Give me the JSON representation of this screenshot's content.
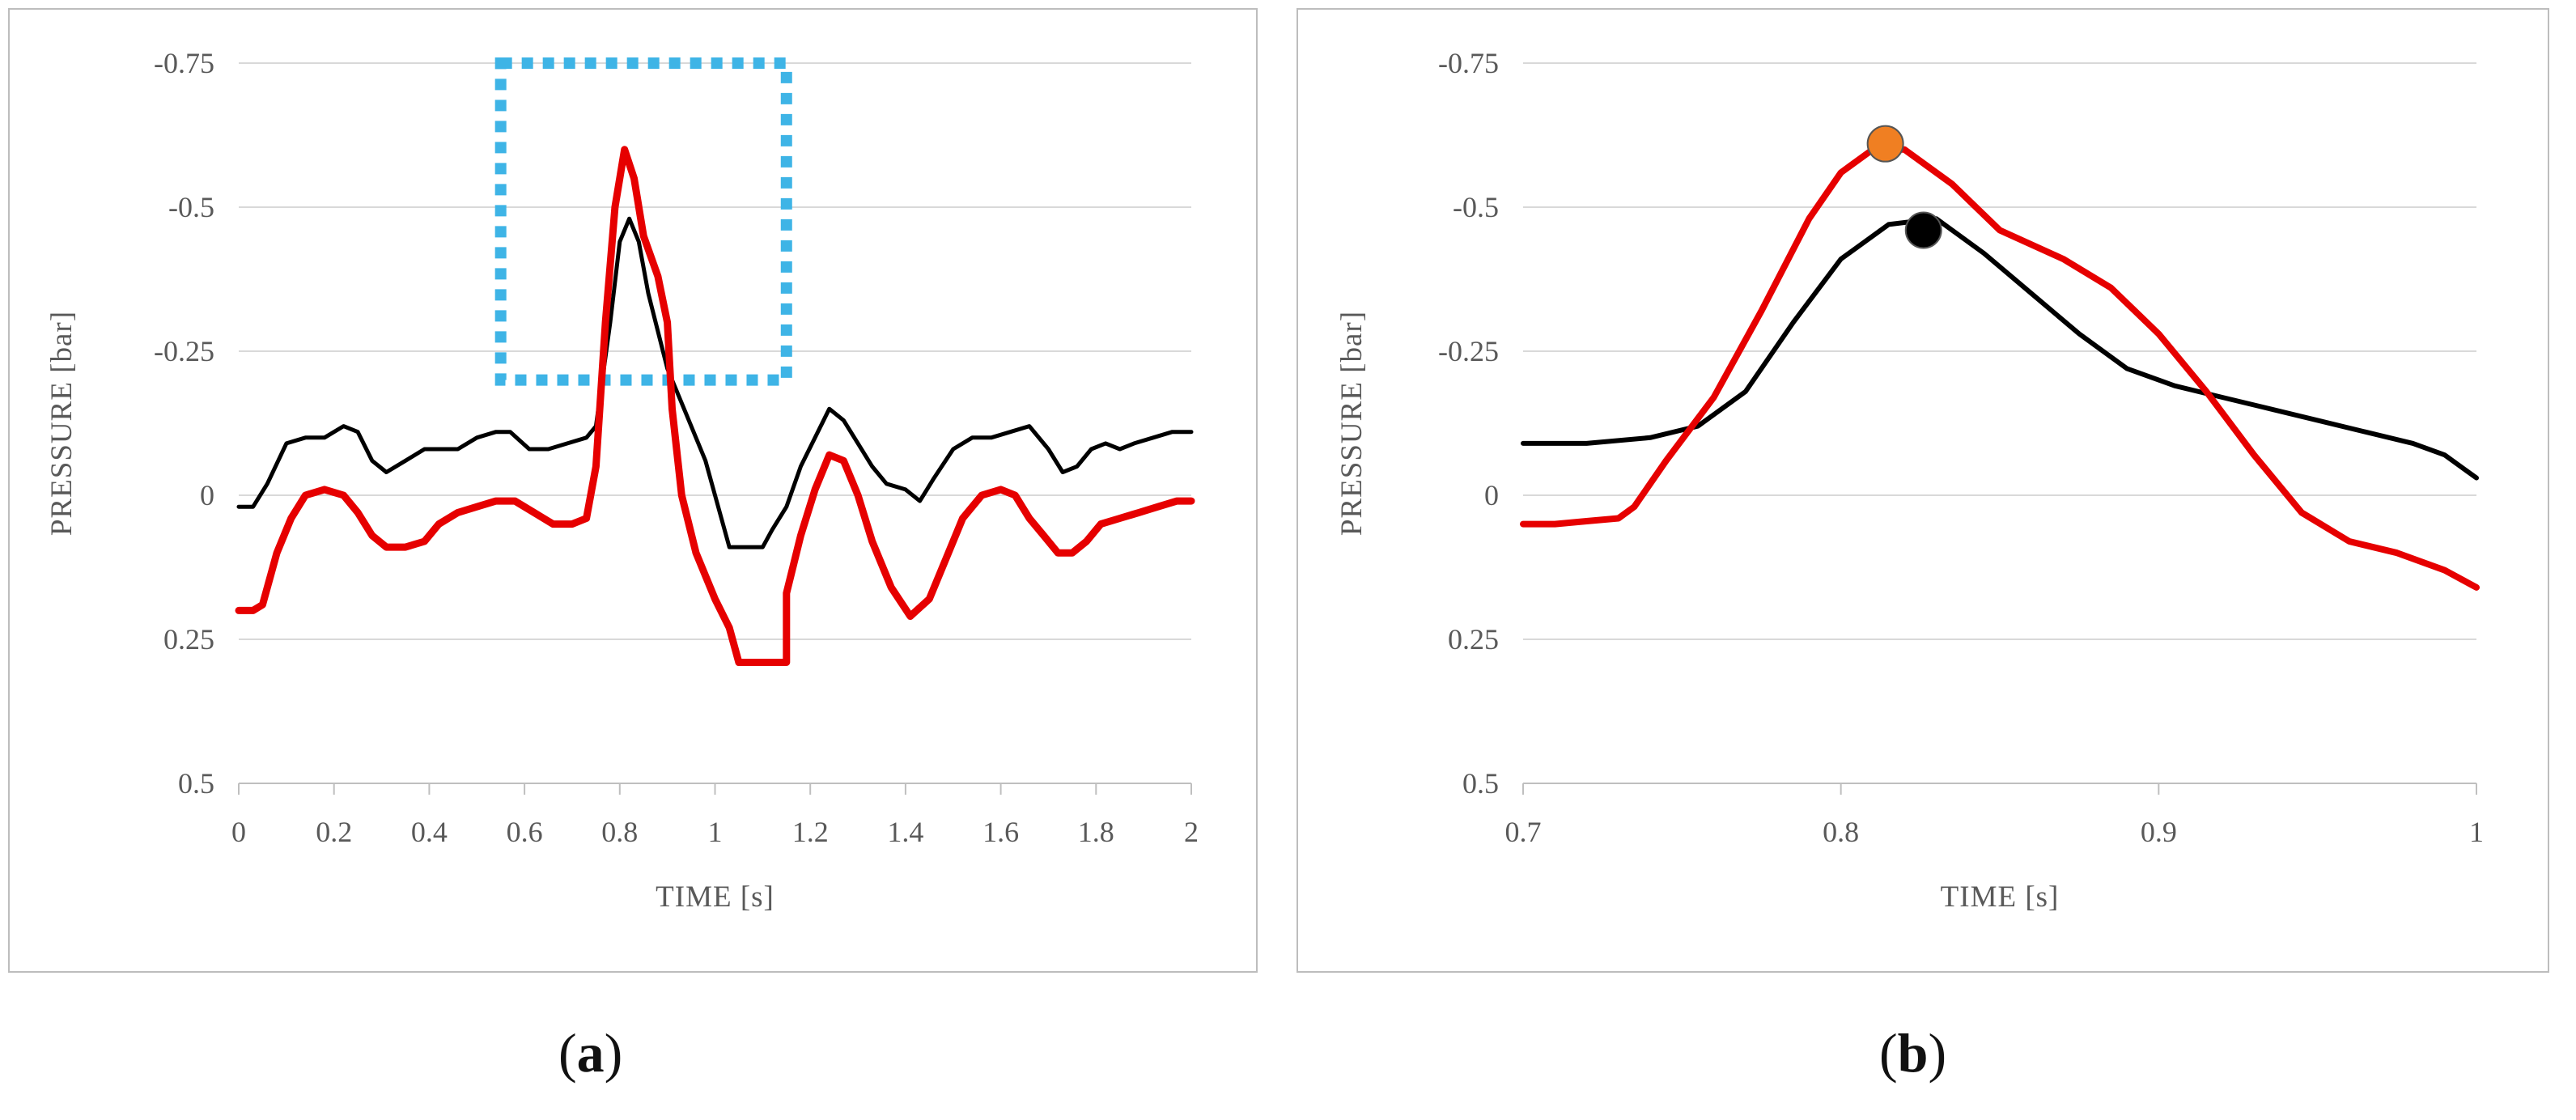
{
  "colors": {
    "measured": "#e60000",
    "simulated": "#000000",
    "highlight_box": "#3eb4e6",
    "peak_measured_marker": "#f07f22",
    "peak_simulated_marker": "#000000",
    "grid": "#d9d9d9",
    "tick_text": "#595959"
  },
  "captions": {
    "a": {
      "open": "(",
      "letter": "a",
      "close": ")"
    },
    "b": {
      "open": "(",
      "letter": "b",
      "close": ")"
    }
  },
  "chart_data": [
    {
      "panel": "a",
      "type": "line",
      "xlabel": "TIME [s]",
      "ylabel": "PRESSURE [bar]",
      "xlim": [
        0,
        2
      ],
      "ylim": [
        -0.75,
        0.5
      ],
      "y_inverted": true,
      "grid": "horizontal",
      "x_ticks": [
        0,
        0.2,
        0.4,
        0.6,
        0.8,
        1,
        1.2,
        1.4,
        1.6,
        1.8,
        2
      ],
      "x_tick_labels": [
        "0",
        "0.2",
        "0.4",
        "0.6",
        "0.8",
        "1",
        "1.2",
        "1.4",
        "1.6",
        "1.8",
        "2"
      ],
      "y_ticks": [
        -0.75,
        -0.5,
        -0.25,
        0,
        0.25,
        0.5
      ],
      "y_tick_labels": [
        "-0.75",
        "-0.5",
        "-0.25",
        "0",
        "0.25",
        "0.5"
      ],
      "highlight_box": {
        "x_range": [
          0.55,
          1.15
        ],
        "y_range": [
          -0.75,
          -0.2
        ],
        "style": "dotted"
      },
      "series": [
        {
          "name": "black trace",
          "color_key": "simulated",
          "stroke": 5,
          "points": [
            [
              0,
              0.02
            ],
            [
              0.03,
              0.02
            ],
            [
              0.06,
              -0.02
            ],
            [
              0.1,
              -0.09
            ],
            [
              0.14,
              -0.1
            ],
            [
              0.18,
              -0.1
            ],
            [
              0.22,
              -0.12
            ],
            [
              0.25,
              -0.11
            ],
            [
              0.28,
              -0.06
            ],
            [
              0.31,
              -0.04
            ],
            [
              0.35,
              -0.06
            ],
            [
              0.39,
              -0.08
            ],
            [
              0.42,
              -0.08
            ],
            [
              0.46,
              -0.08
            ],
            [
              0.5,
              -0.1
            ],
            [
              0.54,
              -0.11
            ],
            [
              0.57,
              -0.11
            ],
            [
              0.61,
              -0.08
            ],
            [
              0.65,
              -0.08
            ],
            [
              0.69,
              -0.09
            ],
            [
              0.73,
              -0.1
            ],
            [
              0.75,
              -0.12
            ],
            [
              0.78,
              -0.3
            ],
            [
              0.8,
              -0.44
            ],
            [
              0.82,
              -0.48
            ],
            [
              0.84,
              -0.44
            ],
            [
              0.86,
              -0.35
            ],
            [
              0.9,
              -0.22
            ],
            [
              0.94,
              -0.14
            ],
            [
              0.98,
              -0.06
            ],
            [
              1.0,
              0
            ],
            [
              1.03,
              0.09
            ],
            [
              1.08,
              0.09
            ],
            [
              1.1,
              0.09
            ],
            [
              1.12,
              0.06
            ],
            [
              1.15,
              0.02
            ],
            [
              1.18,
              -0.05
            ],
            [
              1.21,
              -0.1
            ],
            [
              1.24,
              -0.15
            ],
            [
              1.27,
              -0.13
            ],
            [
              1.3,
              -0.09
            ],
            [
              1.33,
              -0.05
            ],
            [
              1.36,
              -0.02
            ],
            [
              1.4,
              -0.01
            ],
            [
              1.43,
              0.01
            ],
            [
              1.46,
              -0.03
            ],
            [
              1.5,
              -0.08
            ],
            [
              1.54,
              -0.1
            ],
            [
              1.58,
              -0.1
            ],
            [
              1.62,
              -0.11
            ],
            [
              1.66,
              -0.12
            ],
            [
              1.7,
              -0.08
            ],
            [
              1.73,
              -0.04
            ],
            [
              1.76,
              -0.05
            ],
            [
              1.79,
              -0.08
            ],
            [
              1.82,
              -0.09
            ],
            [
              1.85,
              -0.08
            ],
            [
              1.88,
              -0.09
            ],
            [
              1.92,
              -0.1
            ],
            [
              1.96,
              -0.11
            ],
            [
              2.0,
              -0.11
            ]
          ]
        },
        {
          "name": "red trace",
          "color_key": "measured",
          "stroke": 9,
          "points": [
            [
              0,
              0.2
            ],
            [
              0.03,
              0.2
            ],
            [
              0.05,
              0.19
            ],
            [
              0.08,
              0.1
            ],
            [
              0.11,
              0.04
            ],
            [
              0.14,
              0
            ],
            [
              0.18,
              -0.01
            ],
            [
              0.22,
              0
            ],
            [
              0.25,
              0.03
            ],
            [
              0.28,
              0.07
            ],
            [
              0.31,
              0.09
            ],
            [
              0.35,
              0.09
            ],
            [
              0.39,
              0.08
            ],
            [
              0.42,
              0.05
            ],
            [
              0.46,
              0.03
            ],
            [
              0.5,
              0.02
            ],
            [
              0.54,
              0.01
            ],
            [
              0.58,
              0.01
            ],
            [
              0.62,
              0.03
            ],
            [
              0.66,
              0.05
            ],
            [
              0.7,
              0.05
            ],
            [
              0.73,
              0.04
            ],
            [
              0.75,
              -0.05
            ],
            [
              0.77,
              -0.3
            ],
            [
              0.79,
              -0.5
            ],
            [
              0.81,
              -0.6
            ],
            [
              0.83,
              -0.55
            ],
            [
              0.85,
              -0.45
            ],
            [
              0.88,
              -0.38
            ],
            [
              0.9,
              -0.3
            ],
            [
              0.91,
              -0.15
            ],
            [
              0.93,
              0
            ],
            [
              0.96,
              0.1
            ],
            [
              1.0,
              0.18
            ],
            [
              1.03,
              0.23
            ],
            [
              1.05,
              0.29
            ],
            [
              1.1,
              0.29
            ],
            [
              1.15,
              0.29
            ],
            [
              1.15,
              0.17
            ],
            [
              1.18,
              0.07
            ],
            [
              1.21,
              -0.01
            ],
            [
              1.24,
              -0.07
            ],
            [
              1.27,
              -0.06
            ],
            [
              1.3,
              0
            ],
            [
              1.33,
              0.08
            ],
            [
              1.37,
              0.16
            ],
            [
              1.41,
              0.21
            ],
            [
              1.45,
              0.18
            ],
            [
              1.49,
              0.1
            ],
            [
              1.52,
              0.04
            ],
            [
              1.56,
              0
            ],
            [
              1.6,
              -0.01
            ],
            [
              1.63,
              0
            ],
            [
              1.66,
              0.04
            ],
            [
              1.69,
              0.07
            ],
            [
              1.72,
              0.1
            ],
            [
              1.75,
              0.1
            ],
            [
              1.78,
              0.08
            ],
            [
              1.81,
              0.05
            ],
            [
              1.85,
              0.04
            ],
            [
              1.89,
              0.03
            ],
            [
              1.93,
              0.02
            ],
            [
              1.97,
              0.01
            ],
            [
              2.0,
              0.01
            ]
          ]
        }
      ]
    },
    {
      "panel": "b",
      "type": "line",
      "xlabel": "TIME [s]",
      "ylabel": "PRESSURE [bar]",
      "xlim": [
        0.7,
        1
      ],
      "ylim": [
        -0.75,
        0.5
      ],
      "y_inverted": true,
      "grid": "horizontal",
      "x_ticks": [
        0.7,
        0.8,
        0.9,
        1
      ],
      "x_tick_labels": [
        "0.7",
        "0.8",
        "0.9",
        "1"
      ],
      "y_ticks": [
        -0.75,
        -0.5,
        -0.25,
        0,
        0.25,
        0.5
      ],
      "y_tick_labels": [
        "-0.75",
        "-0.5",
        "-0.25",
        "0",
        "0.25",
        "0.5"
      ],
      "series": [
        {
          "name": "black trace",
          "color_key": "simulated",
          "stroke": 6,
          "points": [
            [
              0.7,
              -0.09
            ],
            [
              0.72,
              -0.09
            ],
            [
              0.74,
              -0.1
            ],
            [
              0.755,
              -0.12
            ],
            [
              0.77,
              -0.18
            ],
            [
              0.785,
              -0.3
            ],
            [
              0.8,
              -0.41
            ],
            [
              0.815,
              -0.47
            ],
            [
              0.83,
              -0.48
            ],
            [
              0.845,
              -0.42
            ],
            [
              0.86,
              -0.35
            ],
            [
              0.875,
              -0.28
            ],
            [
              0.89,
              -0.22
            ],
            [
              0.905,
              -0.19
            ],
            [
              0.92,
              -0.17
            ],
            [
              0.935,
              -0.15
            ],
            [
              0.95,
              -0.13
            ],
            [
              0.965,
              -0.11
            ],
            [
              0.98,
              -0.09
            ],
            [
              0.99,
              -0.07
            ],
            [
              1.0,
              -0.03
            ]
          ]
        },
        {
          "name": "red trace",
          "color_key": "measured",
          "stroke": 8,
          "points": [
            [
              0.7,
              0.05
            ],
            [
              0.71,
              0.05
            ],
            [
              0.72,
              0.045
            ],
            [
              0.73,
              0.04
            ],
            [
              0.735,
              0.02
            ],
            [
              0.745,
              -0.06
            ],
            [
              0.76,
              -0.17
            ],
            [
              0.775,
              -0.32
            ],
            [
              0.79,
              -0.48
            ],
            [
              0.8,
              -0.56
            ],
            [
              0.81,
              -0.6
            ],
            [
              0.82,
              -0.6
            ],
            [
              0.835,
              -0.54
            ],
            [
              0.85,
              -0.46
            ],
            [
              0.87,
              -0.41
            ],
            [
              0.885,
              -0.36
            ],
            [
              0.9,
              -0.28
            ],
            [
              0.915,
              -0.18
            ],
            [
              0.93,
              -0.07
            ],
            [
              0.945,
              0.03
            ],
            [
              0.96,
              0.08
            ],
            [
              0.975,
              0.1
            ],
            [
              0.99,
              0.13
            ],
            [
              1.0,
              0.16
            ]
          ]
        }
      ],
      "markers": [
        {
          "name": "red peak marker",
          "x": 0.814,
          "y": -0.61,
          "color_key": "peak_measured_marker"
        },
        {
          "name": "black peak marker",
          "x": 0.826,
          "y": -0.46,
          "color_key": "peak_simulated_marker"
        }
      ]
    }
  ]
}
